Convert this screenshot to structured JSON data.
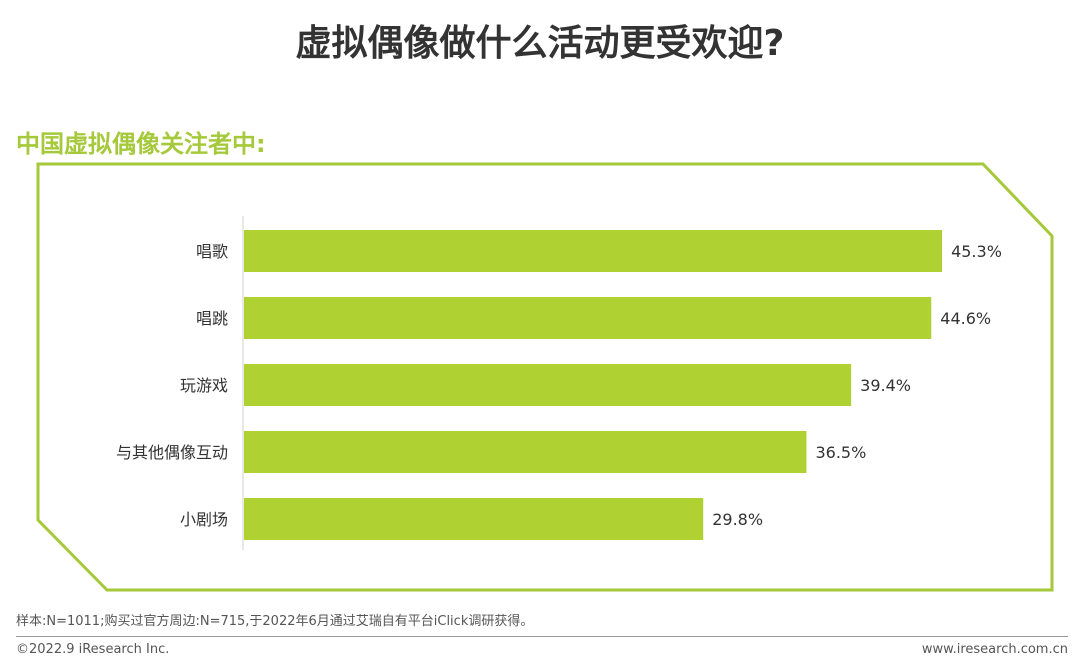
{
  "header": {
    "title": "虚拟偶像做什么活动更受欢迎?",
    "subtitle": "中国虚拟偶像关注者中:"
  },
  "chart_data": {
    "type": "bar",
    "orientation": "horizontal",
    "categories": [
      "唱歌",
      "唱跳",
      "玩游戏",
      "与其他偶像互动",
      "小剧场"
    ],
    "values": [
      45.3,
      44.6,
      39.4,
      36.5,
      29.8
    ],
    "value_labels": [
      "45.3%",
      "44.6%",
      "39.4%",
      "36.5%",
      "29.8%"
    ],
    "unit": "%",
    "bar_color": "#b0d132",
    "frame_color": "#a5c93a",
    "grid": false,
    "legend": "none"
  },
  "footer": {
    "note": "样本:N=1011;购买过官方周边:N=715,于2022年6月通过艾瑞自有平台iClick调研获得。",
    "copyright": "©2022.9 iResearch Inc.",
    "website": "www.iresearch.com.cn"
  }
}
